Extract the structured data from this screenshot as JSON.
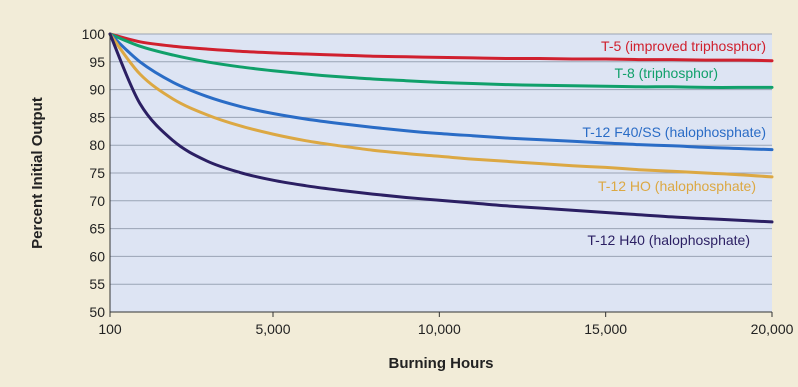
{
  "chart_data": {
    "type": "line",
    "title": "",
    "xlabel": "Burning Hours",
    "ylabel": "Percent Initial Output",
    "xlim": [
      100,
      20000
    ],
    "ylim": [
      50,
      100
    ],
    "x_ticks": [
      100,
      5000,
      10000,
      15000,
      20000
    ],
    "x_tick_labels": [
      "100",
      "5,000",
      "10,000",
      "15,000",
      "20,000"
    ],
    "y_ticks": [
      50,
      55,
      60,
      65,
      70,
      75,
      80,
      85,
      90,
      95,
      100
    ],
    "y_tick_labels": [
      "50",
      "55",
      "60",
      "65",
      "70",
      "75",
      "80",
      "85",
      "90",
      "95",
      "100"
    ],
    "grid": "horizontal",
    "legend": "inline labels on curves",
    "plot_background": "#dde4f3",
    "x": [
      100,
      1000,
      2000,
      3000,
      4000,
      5000,
      6000,
      7000,
      8000,
      9000,
      10000,
      11000,
      12000,
      13000,
      14000,
      15000,
      16000,
      17000,
      18000,
      19000,
      20000
    ],
    "series": [
      {
        "name": "T-5 (improved triphosphor)",
        "color": "#d0202e",
        "values": [
          100,
          98.6,
          97.8,
          97.3,
          96.9,
          96.6,
          96.4,
          96.2,
          96.0,
          95.9,
          95.8,
          95.7,
          95.6,
          95.6,
          95.5,
          95.5,
          95.4,
          95.4,
          95.3,
          95.3,
          95.2
        ]
      },
      {
        "name": "T-8 (triphosphor)",
        "color": "#10a06a",
        "values": [
          100,
          97.8,
          96.2,
          95.0,
          94.1,
          93.4,
          92.8,
          92.3,
          91.9,
          91.6,
          91.3,
          91.1,
          90.9,
          90.8,
          90.7,
          90.6,
          90.5,
          90.5,
          90.4,
          90.4,
          90.4
        ]
      },
      {
        "name": "T-12 F40/SS (halophosphate)",
        "color": "#2a6cc6",
        "values": [
          100,
          95.0,
          91.3,
          88.8,
          87.0,
          85.7,
          84.7,
          83.9,
          83.2,
          82.6,
          82.1,
          81.7,
          81.3,
          81.0,
          80.7,
          80.4,
          80.1,
          79.9,
          79.6,
          79.4,
          79.2
        ]
      },
      {
        "name": "T-12 HO (halophosphate)",
        "color": "#dca843",
        "values": [
          100,
          92.8,
          88.3,
          85.5,
          83.5,
          82.0,
          80.8,
          79.9,
          79.1,
          78.5,
          78.0,
          77.5,
          77.1,
          76.7,
          76.3,
          76.0,
          75.6,
          75.3,
          75.0,
          74.7,
          74.3
        ]
      },
      {
        "name": "T-12 H40 (halophosphate)",
        "color": "#2b1f63",
        "values": [
          100,
          87.5,
          80.8,
          77.2,
          75.1,
          73.7,
          72.7,
          71.9,
          71.2,
          70.6,
          70.1,
          69.6,
          69.1,
          68.7,
          68.3,
          67.9,
          67.5,
          67.1,
          66.8,
          66.5,
          66.2
        ]
      }
    ]
  }
}
